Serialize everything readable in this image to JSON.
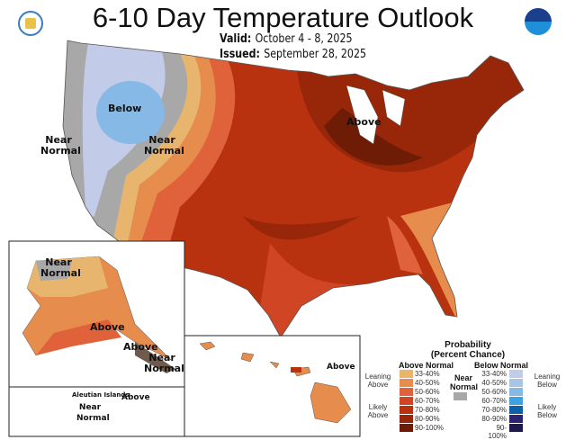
{
  "title": "6-10 Day Temperature Outlook",
  "valid_label": "Valid:",
  "valid": "October 4 - 8, 2025",
  "issued_label": "Issued:",
  "issued": "September 28, 2025",
  "map_labels": {
    "below": "Below",
    "near_normal_west": "Near Normal",
    "near_normal_mid": "Near Normal",
    "above": "Above",
    "ak_near_normal": "Near Normal",
    "ak_above": "Above",
    "ak_above2": "Above",
    "ak_near_normal2": "Near Normal",
    "aleutian_title": "Aleutian Islands",
    "aleutian_above": "Above",
    "aleutian_near_normal": "Near Normal",
    "hawaii_above": "Above"
  },
  "legend": {
    "title": "Probability",
    "subtitle": "(Percent Chance)",
    "above_header": "Above Normal",
    "below_header": "Below Normal",
    "near_normal": "Near Normal",
    "leaning_above": "Leaning Above",
    "likely_above": "Likely Above",
    "leaning_below": "Leaning Below",
    "likely_below": "Likely Below",
    "ranges": [
      "33-40%",
      "40-50%",
      "50-60%",
      "60-70%",
      "70-80%",
      "80-90%",
      "90-100%"
    ],
    "above_colors": [
      "#e8b56f",
      "#e68c4d",
      "#e0623b",
      "#d04524",
      "#b93210",
      "#98270a",
      "#6f1c06"
    ],
    "below_colors": [
      "#c2cbe7",
      "#a9c5e5",
      "#86b9e5",
      "#3fa1e1",
      "#0c5fa9",
      "#2e2272",
      "#1e1950"
    ],
    "near_color": "#a8a8a8"
  }
}
